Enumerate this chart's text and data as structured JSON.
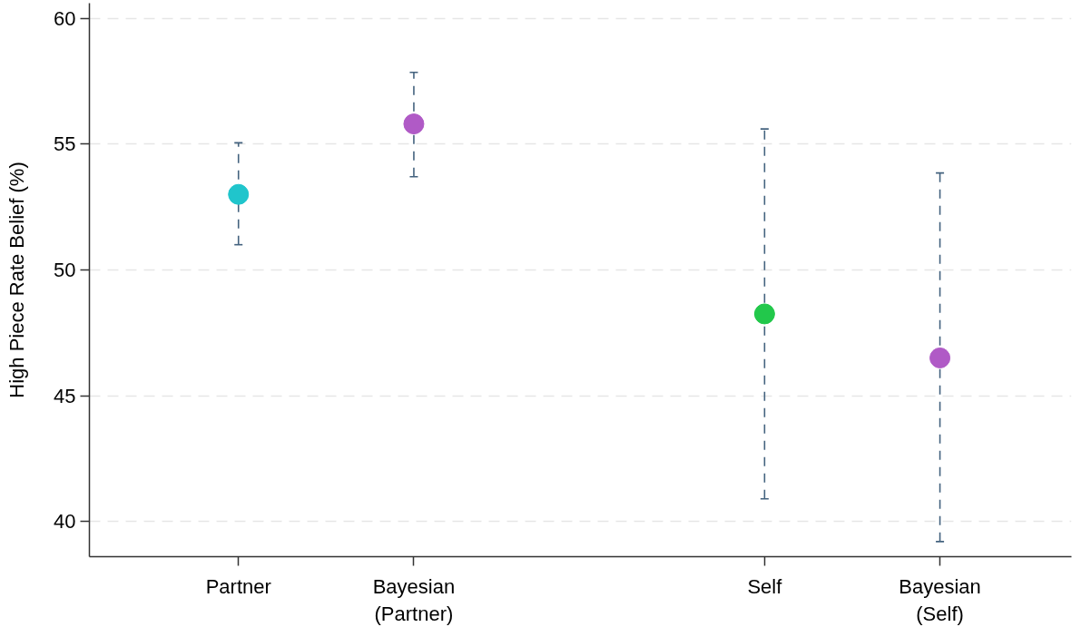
{
  "chart_data": {
    "type": "scatter",
    "ylabel": "High Piece Rate Belief (%)",
    "categories": [
      "Partner",
      "Bayesian\n(Partner)",
      null,
      "Self",
      "Bayesian\n(Self)"
    ],
    "values": [
      53.0,
      55.8,
      null,
      48.25,
      46.5
    ],
    "errors": [
      [
        51.0,
        55.05
      ],
      [
        53.7,
        57.85
      ],
      null,
      [
        40.9,
        55.6
      ],
      [
        39.2,
        53.85
      ]
    ],
    "colors": [
      "#20c5cc",
      "#b05ac6",
      null,
      "#22c84b",
      "#b05ac6"
    ],
    "ylim": [
      38.6,
      60.6
    ],
    "yticks": [
      40,
      45,
      50,
      55,
      60
    ],
    "grid": "y",
    "marker": "circle"
  }
}
